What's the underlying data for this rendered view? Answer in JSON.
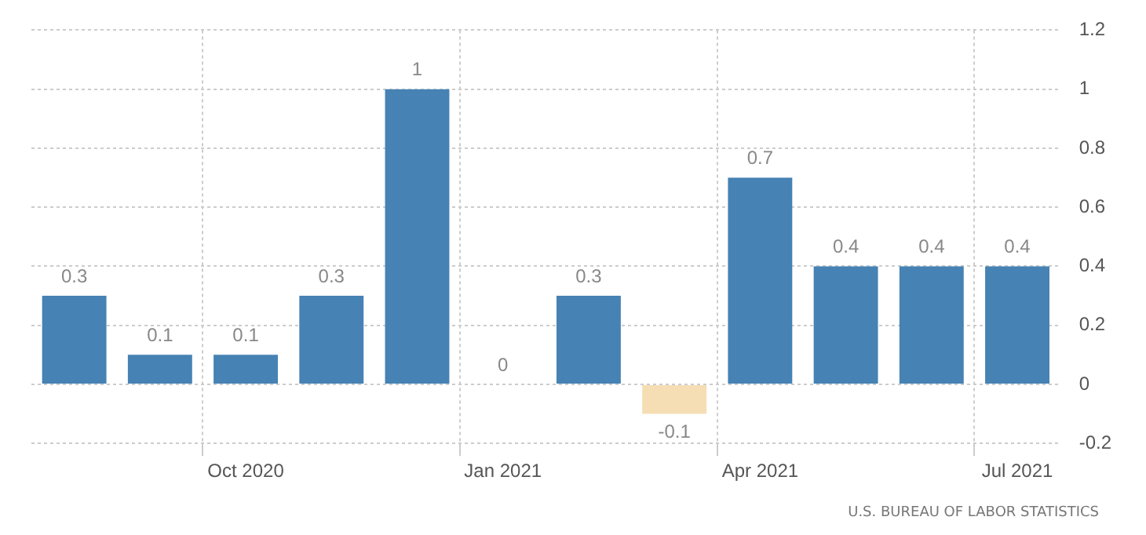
{
  "chart_data": {
    "type": "bar",
    "categories": [
      null,
      null,
      "Oct 2020",
      null,
      null,
      "Jan 2021",
      null,
      null,
      "Apr 2021",
      null,
      null,
      "Jul 2021"
    ],
    "values": [
      0.3,
      0.1,
      0.1,
      0.3,
      1,
      0,
      0.3,
      -0.1,
      0.7,
      0.4,
      0.4,
      0.4
    ],
    "colors": [
      "#4682b4",
      "#4682b4",
      "#4682b4",
      "#4682b4",
      "#4682b4",
      "#4682b4",
      "#4682b4",
      "#f5deb3",
      "#4682b4",
      "#4682b4",
      "#4682b4",
      "#4682b4"
    ],
    "ylim": [
      -0.2,
      1.2
    ],
    "yticks": [
      -0.2,
      0,
      0.2,
      0.4,
      0.6,
      0.8,
      1,
      1.2
    ],
    "grid": true,
    "data_labels": true,
    "legend": false,
    "annotations": [
      "U.S. BUREAU OF LABOR STATISTICS"
    ]
  }
}
